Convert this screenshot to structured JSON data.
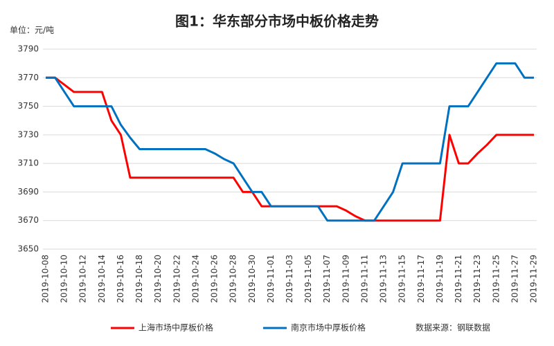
{
  "chart_data": {
    "type": "line",
    "title": "图1：华东部分市场中板价格走势",
    "y_label": "单位：元/吨",
    "source": "数据来源：钢联数据",
    "categories": [
      "2019-10-08",
      null,
      "2019-10-10",
      null,
      "2019-10-12",
      null,
      "2019-10-14",
      null,
      "2019-10-16",
      null,
      "2019-10-18",
      null,
      "2019-10-20",
      null,
      "2019-10-22",
      null,
      "2019-10-24",
      null,
      "2019-10-26",
      null,
      "2019-10-28",
      null,
      "2019-10-30",
      null,
      "2019-11-01",
      null,
      "2019-11-03",
      null,
      "2019-11-05",
      null,
      "2019-11-07",
      null,
      "2019-11-09",
      null,
      "2019-11-11",
      null,
      "2019-11-13",
      null,
      "2019-11-15",
      null,
      "2019-11-17",
      null,
      "2019-11-19",
      null,
      "2019-11-21",
      null,
      "2019-11-23",
      null,
      "2019-11-25",
      null,
      "2019-11-27",
      null,
      "2019-11-29"
    ],
    "series": [
      {
        "name": "上海市场中厚板价格",
        "color": "#ff0000",
        "values": [
          3770,
          3770,
          3765,
          3760,
          3760,
          3760,
          3760,
          3740,
          3730,
          3700,
          3700,
          3700,
          3700,
          3700,
          3700,
          3700,
          3700,
          3700,
          3700,
          3700,
          3700,
          3690,
          3690,
          3680,
          3680,
          3680,
          3680,
          3680,
          3680,
          3680,
          3680,
          3680,
          3677,
          3673,
          3670,
          3670,
          3670,
          3670,
          3670,
          3670,
          3670,
          3670,
          3670,
          3730,
          3710,
          3710,
          3717,
          3723,
          3730,
          3730,
          3730,
          3730,
          3730
        ]
      },
      {
        "name": "南京市场中厚板价格",
        "color": "#0070c0",
        "values": [
          3770,
          3770,
          3760,
          3750,
          3750,
          3750,
          3750,
          3750,
          3737,
          3728,
          3720,
          3720,
          3720,
          3720,
          3720,
          3720,
          3720,
          3720,
          3717,
          3713,
          3710,
          3700,
          3690,
          3690,
          3680,
          3680,
          3680,
          3680,
          3680,
          3680,
          3670,
          3670,
          3670,
          3670,
          3670,
          3670,
          3680,
          3690,
          3710,
          3710,
          3710,
          3710,
          3710,
          3750,
          3750,
          3750,
          3760,
          3770,
          3780,
          3780,
          3780,
          3770,
          3770
        ]
      }
    ],
    "ylim": [
      3650,
      3790
    ],
    "yticks": [
      3650,
      3670,
      3690,
      3710,
      3730,
      3750,
      3770,
      3790
    ],
    "grid": true
  }
}
